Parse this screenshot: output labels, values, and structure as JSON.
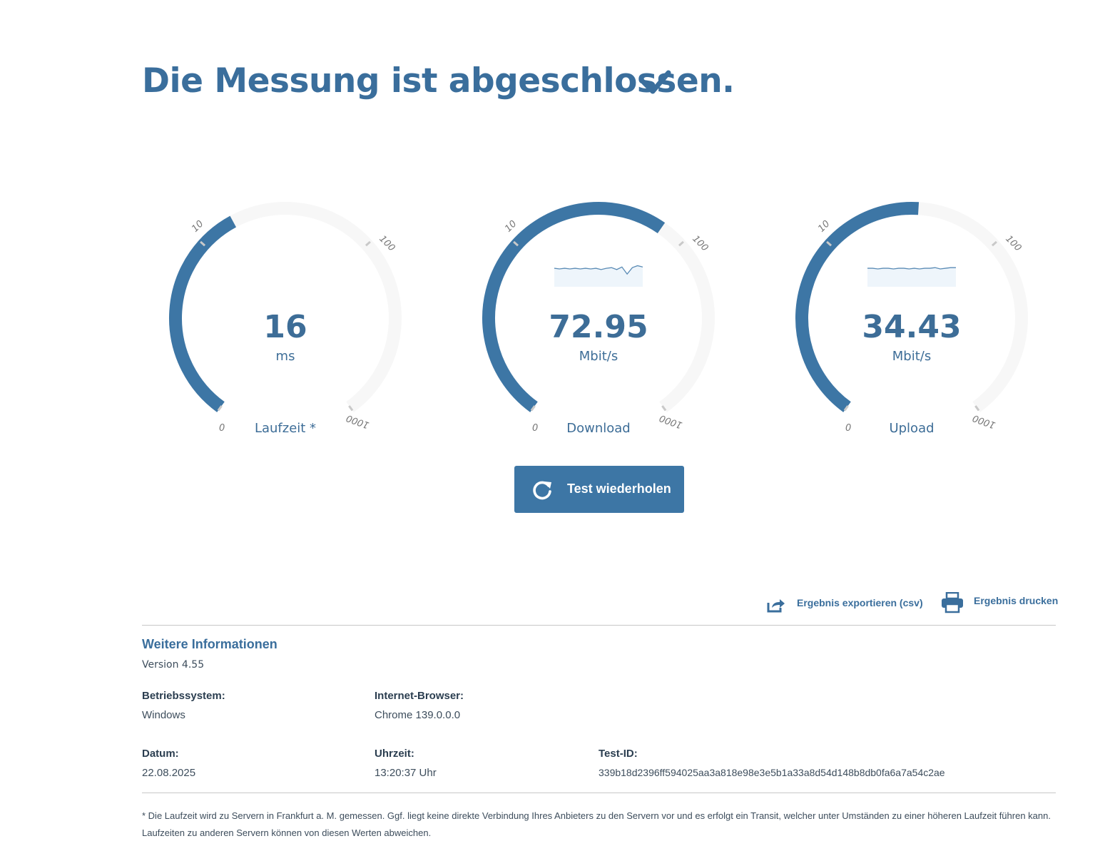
{
  "header": {
    "title": "Die Messung ist abgeschlossen.",
    "done_icon": "checkmark-icon"
  },
  "colors": {
    "accent": "#3d76a5",
    "track": "#f7f7f7",
    "tick": "#c9c9c9"
  },
  "gauges": [
    {
      "id": "latency",
      "value": "16",
      "unit": "ms",
      "label": "Laufzeit *",
      "scale": [
        "0",
        "10",
        "100",
        "1000"
      ],
      "numeric_value": 16,
      "has_sparkline": false
    },
    {
      "id": "download",
      "value": "72.95",
      "unit": "Mbit/s",
      "label": "Download",
      "scale": [
        "0",
        "10",
        "100",
        "1000"
      ],
      "numeric_value": 72.95,
      "has_sparkline": true,
      "sparkline": [
        20,
        21,
        20,
        21,
        20,
        21,
        20,
        21,
        20,
        22,
        20,
        19,
        22,
        18,
        29,
        19,
        16,
        18
      ]
    },
    {
      "id": "upload",
      "value": "34.43",
      "unit": "Mbit/s",
      "label": "Upload",
      "scale": [
        "0",
        "10",
        "100",
        "1000"
      ],
      "numeric_value": 34.43,
      "has_sparkline": true,
      "sparkline": [
        20,
        20,
        21,
        20,
        20,
        21,
        20,
        20,
        21,
        20,
        21,
        20,
        20,
        19,
        21,
        20,
        19,
        19
      ]
    }
  ],
  "actions": {
    "repeat_label": "Test wiederholen",
    "repeat_icon": "refresh-icon",
    "export_label": "Ergebnis exportieren (csv)",
    "export_icon": "share-icon",
    "print_label": "Ergebnis drucken",
    "print_icon": "printer-icon"
  },
  "info": {
    "title": "Weitere Informationen",
    "version": "Version 4.55",
    "os_label": "Betriebssystem:",
    "os_value": "Windows",
    "browser_label": "Internet-Browser:",
    "browser_value": "Chrome 139.0.0.0",
    "date_label": "Datum:",
    "date_value": "22.08.2025",
    "time_label": "Uhrzeit:",
    "time_value": "13:20:37 Uhr",
    "testid_label": "Test-ID:",
    "testid_value": "339b18d2396ff594025aa3a818e98e3e5b1a33a8d54d148b8db0fa6a7a54c2ae"
  },
  "footnote": "* Die Laufzeit wird zu Servern in Frankfurt a. M. gemessen. Ggf. liegt keine direkte Verbindung Ihres Anbieters zu den Servern vor und es erfolgt ein Transit, welcher unter Umständen zu einer höheren Laufzeit führen kann. Laufzeiten zu anderen Servern können von diesen Werten abweichen."
}
